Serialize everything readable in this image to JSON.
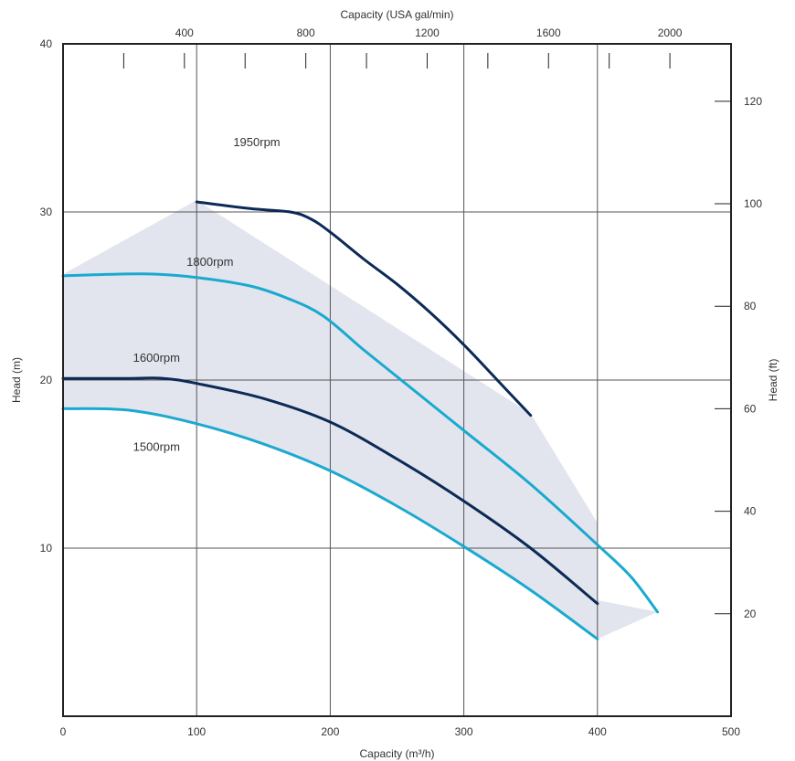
{
  "chart_data": {
    "type": "line",
    "x_bottom": {
      "label": "Capacity (m³/h)",
      "min": 0,
      "max": 500,
      "ticks": [
        0,
        100,
        200,
        300,
        400,
        500
      ]
    },
    "x_top": {
      "label": "Capacity (USA gal/min)",
      "min": 0,
      "max": 2201.5,
      "ticks": [
        400,
        800,
        1200,
        1600,
        2000
      ]
    },
    "y_left": {
      "label": "Head (m)",
      "min": 0,
      "max": 40,
      "ticks": [
        10,
        20,
        30,
        40
      ]
    },
    "y_right": {
      "label": "Head (ft)",
      "min": 0,
      "max": 131.2,
      "ticks": [
        20,
        40,
        60,
        80,
        100,
        120
      ]
    },
    "grid": true,
    "colors": {
      "dark": "#0b2a55",
      "light": "#1aa9cf",
      "envelope": "#e3e5ee",
      "grid": "#555555"
    },
    "envelope": [
      [
        0,
        26.3
      ],
      [
        100,
        30.7
      ],
      [
        350,
        18
      ],
      [
        400,
        11.5
      ],
      [
        400,
        6.9
      ],
      [
        445,
        6.2
      ]
    ],
    "series": [
      {
        "name": "1950rpm",
        "color_key": "dark",
        "label_at": [
          145,
          33.9
        ],
        "points": [
          [
            100,
            30.6
          ],
          [
            140,
            30.2
          ],
          [
            170,
            30.0
          ],
          [
            185,
            29.6
          ],
          [
            200,
            28.8
          ],
          [
            225,
            27.2
          ],
          [
            250,
            25.7
          ],
          [
            275,
            24.0
          ],
          [
            300,
            22.1
          ],
          [
            325,
            20.0
          ],
          [
            350,
            17.9
          ]
        ]
      },
      {
        "name": "1800rpm",
        "color_key": "light",
        "label_at": [
          110,
          26.8
        ],
        "points": [
          [
            0,
            26.2
          ],
          [
            40,
            26.3
          ],
          [
            70,
            26.3
          ],
          [
            100,
            26.1
          ],
          [
            140,
            25.6
          ],
          [
            170,
            24.8
          ],
          [
            195,
            23.8
          ],
          [
            225,
            21.8
          ],
          [
            250,
            20.2
          ],
          [
            300,
            17.0
          ],
          [
            350,
            13.8
          ],
          [
            400,
            10.2
          ],
          [
            425,
            8.3
          ],
          [
            445,
            6.2
          ]
        ]
      },
      {
        "name": "1600rpm",
        "color_key": "dark",
        "label_at": [
          70,
          21.1
        ],
        "points": [
          [
            0,
            20.1
          ],
          [
            50,
            20.1
          ],
          [
            75,
            20.1
          ],
          [
            100,
            19.8
          ],
          [
            150,
            18.9
          ],
          [
            200,
            17.5
          ],
          [
            250,
            15.3
          ],
          [
            300,
            12.8
          ],
          [
            350,
            10.0
          ],
          [
            400,
            6.7
          ]
        ]
      },
      {
        "name": "1500rpm",
        "color_key": "light",
        "label_at": [
          70,
          15.8
        ],
        "points": [
          [
            0,
            18.3
          ],
          [
            50,
            18.2
          ],
          [
            100,
            17.4
          ],
          [
            150,
            16.2
          ],
          [
            200,
            14.6
          ],
          [
            250,
            12.5
          ],
          [
            300,
            10.1
          ],
          [
            350,
            7.5
          ],
          [
            400,
            4.6
          ]
        ]
      }
    ]
  }
}
